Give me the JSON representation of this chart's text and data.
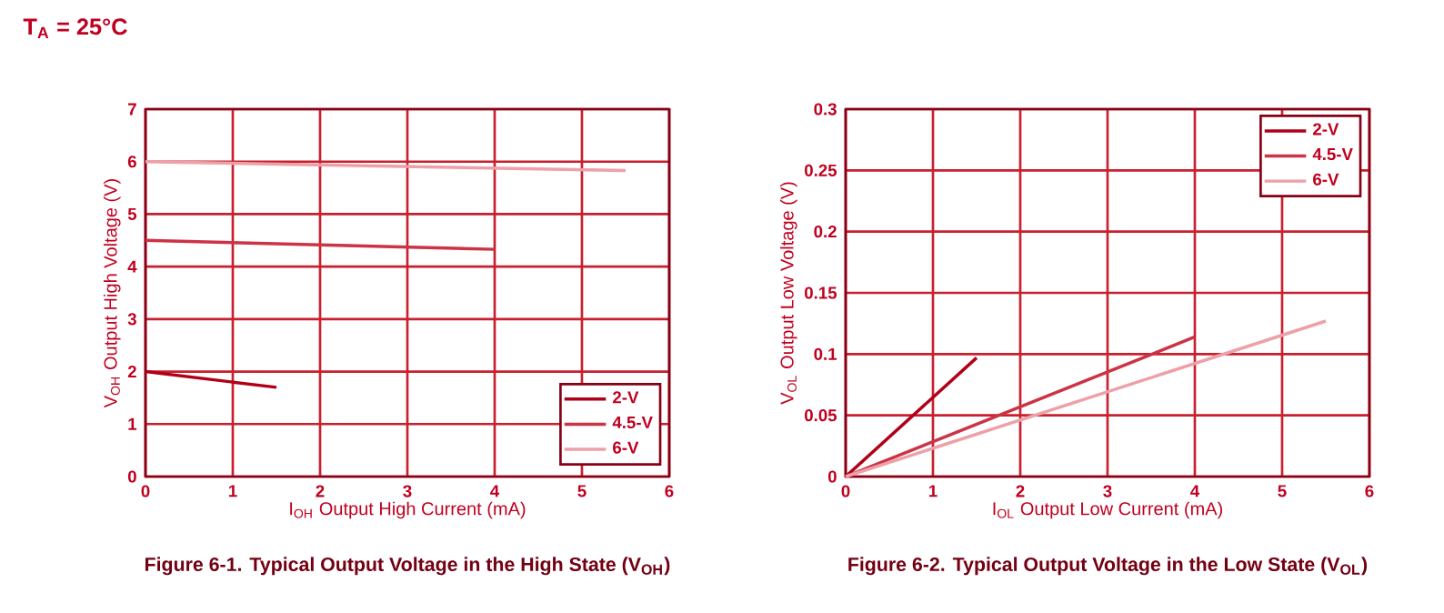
{
  "chart_data": [
    {
      "type": "line",
      "title": "Figure 6-1. Typical Output Voltage in the High State (V$_{OH}$)",
      "xlabel": "I$_{OH}$ Output High Current (mA)",
      "ylabel": "V$_{OH}$ Output High Voltage (V)",
      "annotations": [
        "T$_{A}$ = 25°C"
      ],
      "xlim": [
        0,
        6
      ],
      "ylim": [
        0,
        7
      ],
      "xticks": [
        0,
        1,
        2,
        3,
        4,
        5,
        6
      ],
      "yticks": [
        0,
        1,
        2,
        3,
        4,
        5,
        6,
        7
      ],
      "grid": true,
      "legend": "bottom right",
      "series": [
        {
          "name": "2-V",
          "color": "#b00018",
          "x": [
            0,
            1.5
          ],
          "values": [
            2,
            1.7
          ]
        },
        {
          "name": "4.5-V",
          "color": "#cc3344",
          "x": [
            0,
            4
          ],
          "values": [
            4.5,
            4.33
          ]
        },
        {
          "name": "6-V",
          "color": "#eea0a8",
          "x": [
            0,
            5.5
          ],
          "values": [
            6,
            5.83
          ]
        }
      ]
    },
    {
      "type": "line",
      "title": "Figure 6-2. Typical Output Voltage in the Low State (V$_{OL}$)",
      "xlabel": "I$_{OL}$ Output Low Current (mA)",
      "ylabel": "V$_{OL}$ Output Low Voltage (V)",
      "xlim": [
        0,
        6
      ],
      "ylim": [
        0,
        0.3
      ],
      "xticks": [
        0,
        1,
        2,
        3,
        4,
        5,
        6
      ],
      "yticks": [
        0,
        0.05,
        0.1,
        0.15,
        0.2,
        0.25,
        0.3
      ],
      "grid": true,
      "legend": "top right",
      "series": [
        {
          "name": "2-V",
          "color": "#b00018",
          "x": [
            0,
            1.5
          ],
          "values": [
            0,
            0.097
          ]
        },
        {
          "name": "4.5-V",
          "color": "#cc3344",
          "x": [
            0,
            4
          ],
          "values": [
            0,
            0.114
          ]
        },
        {
          "name": "6-V",
          "color": "#eea0a8",
          "x": [
            0,
            5.5
          ],
          "values": [
            0,
            0.127
          ]
        }
      ]
    }
  ]
}
